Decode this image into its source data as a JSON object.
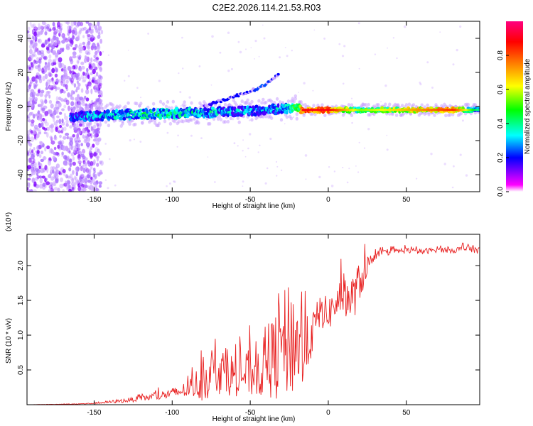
{
  "figure_title": "C2E2.2026.114.21.53.R03",
  "chart_data": [
    {
      "type": "heatmap",
      "title": "C2E2.2026.114.21.53.R03",
      "xlabel": "Height of straight line (km)",
      "ylabel": "Frequency (Hz)",
      "xlim": [
        -193,
        97
      ],
      "ylim": [
        -50,
        50
      ],
      "xticks": [
        -150,
        -100,
        -50,
        0,
        50
      ],
      "xtick_labels": [
        "-150",
        "-100",
        "-50",
        "0",
        "50"
      ],
      "yticks": [
        40,
        20,
        0,
        -20,
        -40
      ],
      "ytick_labels": [
        "40",
        "20",
        "0",
        "-20",
        "-40"
      ],
      "colorbar": {
        "label": "Normalized spectral amplitude",
        "range": [
          0,
          1
        ],
        "ticks": [
          0.0,
          0.2,
          0.4,
          0.6,
          0.8
        ],
        "tick_labels": [
          "0.0",
          "0.2",
          "0.4",
          "0.6",
          "0.8"
        ],
        "colormap": [
          "#ff00ff",
          "#0000ff",
          "#00ffff",
          "#00ff00",
          "#ffff00",
          "#ff8000",
          "#ff0000",
          "#ff0080"
        ]
      },
      "main_ridge": {
        "x": [
          -160,
          -140,
          -120,
          -100,
          -80,
          -60,
          -40,
          -25,
          -18,
          -17,
          0,
          20,
          50,
          80,
          95
        ],
        "freq": [
          -6,
          -5,
          -4.5,
          -4,
          -3.5,
          -3,
          -2,
          -1,
          0,
          -2,
          -2,
          -2,
          -2,
          -2,
          -2
        ],
        "amplitude": [
          0.35,
          0.45,
          0.5,
          0.5,
          0.45,
          0.4,
          0.4,
          0.45,
          0.7,
          0.9,
          0.9,
          0.55,
          0.7,
          0.85,
          0.4
        ]
      },
      "branch_echo": {
        "x": [
          -80,
          -70,
          -60,
          -50,
          -42,
          -35,
          -32
        ],
        "freq": [
          0,
          3,
          6,
          9,
          12,
          16,
          19
        ],
        "amplitude": [
          0.15,
          0.2,
          0.2,
          0.2,
          0.25,
          0.2,
          0.2
        ]
      },
      "noise_region_x": [
        -193,
        -145
      ],
      "colors": {
        "strong": "#ff0000",
        "medium": "#00ffff",
        "weak": "#8000ff",
        "faint": "#c9a0ff"
      }
    },
    {
      "type": "line",
      "title": "",
      "xlabel": "Height of straight line (km)",
      "ylabel": "SNR (10 * v/v)",
      "scale_label": "(x10⁴)",
      "xlim": [
        -193,
        97
      ],
      "ylim": [
        0,
        2.45
      ],
      "xticks": [
        -150,
        -100,
        -50,
        0,
        50
      ],
      "xtick_labels": [
        "-150",
        "-100",
        "-50",
        "0",
        "50"
      ],
      "yticks": [
        0.5,
        1.0,
        1.5,
        2.0
      ],
      "ytick_labels": [
        "0.5",
        "1.0",
        "1.5",
        "2.0"
      ],
      "line_color": "#e82020",
      "series": [
        {
          "name": "SNR",
          "x": [
            -193,
            -160,
            -150,
            -140,
            -130,
            -120,
            -110,
            -100,
            -90,
            -80,
            -70,
            -60,
            -50,
            -40,
            -30,
            -25,
            -20,
            -15,
            -10,
            -5,
            0,
            5,
            10,
            15,
            20,
            25,
            30,
            40,
            50,
            60,
            70,
            80,
            90,
            97
          ],
          "y": [
            0.0,
            0.01,
            0.02,
            0.04,
            0.06,
            0.09,
            0.12,
            0.16,
            0.22,
            0.35,
            0.5,
            0.42,
            0.45,
            0.55,
            0.8,
            0.95,
            0.9,
            0.75,
            1.05,
            1.35,
            1.3,
            1.45,
            1.6,
            1.5,
            1.75,
            2.0,
            2.15,
            2.2,
            2.22,
            2.2,
            2.23,
            2.22,
            2.25,
            2.22
          ],
          "spread": [
            0.0,
            0.005,
            0.01,
            0.02,
            0.03,
            0.04,
            0.06,
            0.08,
            0.12,
            0.3,
            0.35,
            0.3,
            0.35,
            0.45,
            0.75,
            0.85,
            0.8,
            0.5,
            0.3,
            0.25,
            0.25,
            0.25,
            0.3,
            0.35,
            0.3,
            0.15,
            0.06,
            0.04,
            0.04,
            0.04,
            0.04,
            0.04,
            0.06,
            0.05
          ]
        }
      ]
    }
  ]
}
